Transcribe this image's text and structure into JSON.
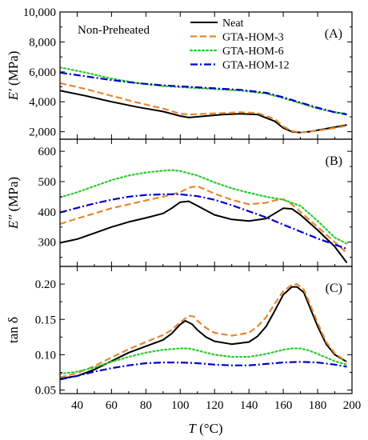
{
  "chart_data": [
    {
      "type": "line",
      "panel_label": "(A)",
      "annotation": "Non-Preheated",
      "ylabel_main": "E′",
      "ylabel_unit": " (MPa)",
      "ylim": [
        1500,
        10000
      ],
      "yticks": [
        2000,
        4000,
        6000,
        8000,
        10000
      ],
      "ytick_labels": [
        "2,000",
        "4,000",
        "6,000",
        "8,000",
        "10,000"
      ],
      "xlim": [
        30,
        200
      ],
      "grid": false,
      "legend_position": "top-right",
      "series": [
        {
          "name": "Neat",
          "color": "#000000",
          "dash": "solid",
          "x": [
            30,
            45,
            60,
            75,
            90,
            100,
            105,
            115,
            125,
            135,
            145,
            155,
            160,
            165,
            170,
            175,
            185,
            197
          ],
          "y": [
            4750,
            4400,
            4000,
            3650,
            3350,
            3050,
            2950,
            3050,
            3150,
            3200,
            3150,
            2700,
            2250,
            2000,
            1950,
            2000,
            2200,
            2450
          ]
        },
        {
          "name": "GTA-HOM-3",
          "color": "#e8862e",
          "dash": "dashed",
          "x": [
            30,
            45,
            60,
            75,
            90,
            100,
            105,
            115,
            125,
            135,
            145,
            155,
            160,
            165,
            170,
            175,
            185,
            197
          ],
          "y": [
            5250,
            4850,
            4400,
            3950,
            3550,
            3200,
            3150,
            3200,
            3250,
            3300,
            3250,
            2850,
            2350,
            2050,
            1950,
            2000,
            2150,
            2400
          ]
        },
        {
          "name": "GTA-HOM-6",
          "color": "#2ecc2e",
          "dash": "dotted",
          "x": [
            30,
            45,
            60,
            75,
            90,
            105,
            120,
            135,
            150,
            160,
            170,
            180,
            190,
            197
          ],
          "y": [
            6300,
            5950,
            5550,
            5250,
            5050,
            4950,
            4850,
            4750,
            4550,
            4250,
            3900,
            3550,
            3300,
            3200
          ]
        },
        {
          "name": "GTA-HOM-12",
          "color": "#0000cc",
          "dash": "dashdot",
          "x": [
            30,
            45,
            60,
            75,
            90,
            105,
            120,
            135,
            150,
            160,
            170,
            180,
            190,
            197
          ],
          "y": [
            5950,
            5700,
            5450,
            5250,
            5100,
            5000,
            4900,
            4800,
            4600,
            4300,
            3950,
            3600,
            3300,
            3150
          ]
        }
      ]
    },
    {
      "type": "line",
      "panel_label": "(B)",
      "ylabel_main": "E″",
      "ylabel_unit": " (MPa)",
      "ylim": [
        220,
        640
      ],
      "yticks": [
        300,
        400,
        500,
        600
      ],
      "ytick_labels": [
        "300",
        "400",
        "500",
        "600"
      ],
      "xlim": [
        30,
        200
      ],
      "grid": false,
      "series": [
        {
          "name": "Neat",
          "color": "#000000",
          "dash": "solid",
          "x": [
            30,
            40,
            50,
            60,
            70,
            80,
            90,
            95,
            100,
            105,
            110,
            120,
            130,
            140,
            150,
            155,
            160,
            165,
            170,
            180,
            190,
            197
          ],
          "y": [
            298,
            310,
            330,
            350,
            367,
            380,
            395,
            412,
            432,
            435,
            420,
            390,
            375,
            370,
            378,
            395,
            412,
            410,
            390,
            340,
            285,
            232
          ]
        },
        {
          "name": "GTA-HOM-3",
          "color": "#e8862e",
          "dash": "dashed",
          "x": [
            30,
            40,
            50,
            60,
            70,
            80,
            90,
            100,
            105,
            110,
            120,
            130,
            140,
            150,
            155,
            160,
            165,
            170,
            180,
            190,
            197
          ],
          "y": [
            360,
            378,
            395,
            412,
            425,
            438,
            450,
            465,
            480,
            485,
            460,
            440,
            425,
            430,
            438,
            442,
            425,
            400,
            350,
            300,
            265
          ]
        },
        {
          "name": "GTA-HOM-6",
          "color": "#2ecc2e",
          "dash": "dotted",
          "x": [
            30,
            40,
            50,
            60,
            70,
            80,
            90,
            95,
            100,
            110,
            120,
            130,
            140,
            150,
            160,
            170,
            180,
            190,
            197
          ],
          "y": [
            448,
            465,
            485,
            505,
            520,
            530,
            536,
            538,
            535,
            520,
            497,
            478,
            463,
            450,
            440,
            420,
            370,
            315,
            295
          ]
        },
        {
          "name": "GTA-HOM-12",
          "color": "#0000cc",
          "dash": "dashdot",
          "x": [
            30,
            40,
            50,
            60,
            70,
            80,
            90,
            100,
            110,
            120,
            130,
            140,
            150,
            160,
            170,
            180,
            190,
            197
          ],
          "y": [
            398,
            413,
            428,
            440,
            450,
            456,
            458,
            458,
            452,
            440,
            422,
            402,
            382,
            358,
            335,
            312,
            292,
            278
          ]
        }
      ]
    },
    {
      "type": "line",
      "panel_label": "(C)",
      "ylabel_main": "tan δ",
      "ylim": [
        0.045,
        0.225
      ],
      "yticks": [
        0.05,
        0.1,
        0.15,
        0.2
      ],
      "ytick_labels": [
        "0.05",
        "0.10",
        "0.15",
        "0.20"
      ],
      "xlim": [
        30,
        200
      ],
      "xticks": [
        40,
        60,
        80,
        100,
        120,
        140,
        160,
        180,
        200
      ],
      "xtick_labels": [
        "40",
        "60",
        "80",
        "100",
        "120",
        "140",
        "160",
        "180",
        "200"
      ],
      "xlabel_main": "T",
      "xlabel_unit": " (°C)",
      "grid": false,
      "series": [
        {
          "name": "Neat",
          "color": "#000000",
          "dash": "solid",
          "x": [
            30,
            40,
            50,
            60,
            70,
            80,
            90,
            95,
            100,
            103,
            107,
            110,
            115,
            120,
            130,
            140,
            145,
            150,
            155,
            160,
            165,
            168,
            172,
            175,
            180,
            185,
            190,
            197
          ],
          "y": [
            0.066,
            0.07,
            0.079,
            0.091,
            0.103,
            0.112,
            0.121,
            0.13,
            0.143,
            0.148,
            0.143,
            0.135,
            0.125,
            0.119,
            0.115,
            0.118,
            0.126,
            0.14,
            0.162,
            0.185,
            0.196,
            0.196,
            0.188,
            0.17,
            0.14,
            0.115,
            0.1,
            0.09
          ]
        },
        {
          "name": "GTA-HOM-3",
          "color": "#e8862e",
          "dash": "dashed",
          "x": [
            30,
            40,
            50,
            60,
            70,
            80,
            90,
            95,
            100,
            105,
            108,
            110,
            115,
            120,
            130,
            140,
            145,
            150,
            155,
            160,
            165,
            168,
            172,
            175,
            180,
            185,
            190,
            197
          ],
          "y": [
            0.068,
            0.074,
            0.084,
            0.096,
            0.108,
            0.118,
            0.128,
            0.135,
            0.146,
            0.155,
            0.154,
            0.148,
            0.138,
            0.131,
            0.127,
            0.131,
            0.14,
            0.153,
            0.172,
            0.19,
            0.199,
            0.2,
            0.192,
            0.175,
            0.145,
            0.118,
            0.102,
            0.09
          ]
        },
        {
          "name": "GTA-HOM-6",
          "color": "#2ecc2e",
          "dash": "dotted",
          "x": [
            30,
            40,
            50,
            60,
            70,
            80,
            90,
            100,
            105,
            110,
            120,
            130,
            140,
            150,
            160,
            165,
            170,
            175,
            180,
            190,
            197
          ],
          "y": [
            0.073,
            0.076,
            0.082,
            0.09,
            0.097,
            0.103,
            0.107,
            0.109,
            0.109,
            0.106,
            0.1,
            0.097,
            0.097,
            0.101,
            0.107,
            0.109,
            0.109,
            0.106,
            0.101,
            0.091,
            0.086
          ]
        },
        {
          "name": "GTA-HOM-12",
          "color": "#0000cc",
          "dash": "dashdot",
          "x": [
            30,
            40,
            50,
            60,
            70,
            80,
            90,
            100,
            110,
            120,
            130,
            140,
            150,
            160,
            170,
            180,
            190,
            197
          ],
          "y": [
            0.065,
            0.07,
            0.076,
            0.081,
            0.085,
            0.088,
            0.089,
            0.089,
            0.088,
            0.086,
            0.085,
            0.085,
            0.087,
            0.089,
            0.09,
            0.089,
            0.086,
            0.083
          ]
        }
      ]
    }
  ]
}
